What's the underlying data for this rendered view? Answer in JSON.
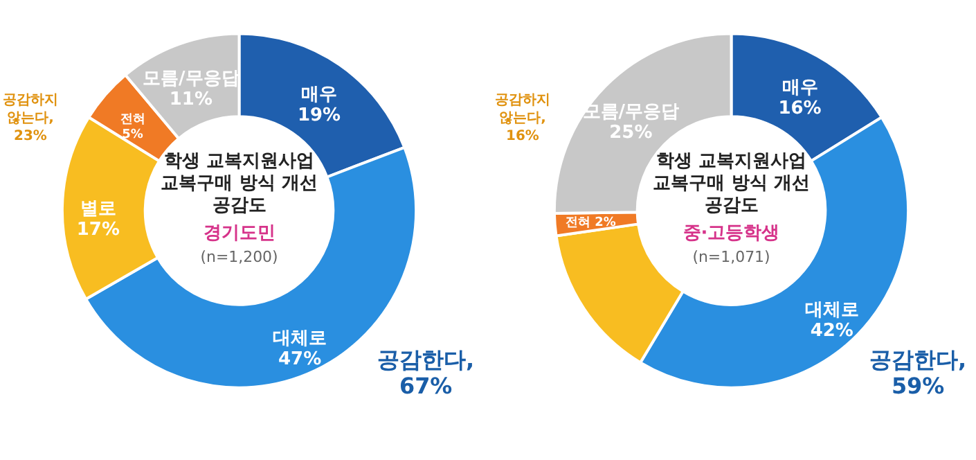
{
  "chart_data": [
    {
      "type": "donut",
      "title": "학생 교복지원사업\n교복구매 방식 개선\n공감도",
      "subtitle": "경기도민",
      "categories": [
        "매우",
        "대체로",
        "별로",
        "전혀",
        "모름/무응답"
      ],
      "values": [
        19,
        47,
        17,
        5,
        11
      ],
      "value_labels": [
        "19%",
        "47%",
        "17%",
        "5%",
        "11%"
      ],
      "colors": [
        "#1f5fae",
        "#2a8fe0",
        "#f8bd21",
        "#f07a25",
        "#c8c8c8"
      ],
      "annotations": [
        "(n=1,200)",
        "공감한다,\n67%",
        "공감하지\n않는다,\n23%"
      ]
    },
    {
      "type": "donut",
      "title": "학생 교복지원사업\n교복구매 방식 개선\n공감도",
      "subtitle": "중·고등학생",
      "categories": [
        "매우",
        "대체로",
        null,
        "전혀",
        "모름/무응답"
      ],
      "values": [
        16,
        42,
        14,
        2,
        25
      ],
      "value_labels": [
        "16%",
        "42%",
        null,
        "2%",
        "25%"
      ],
      "colors": [
        "#1f5fae",
        "#2a8fe0",
        "#f8bd21",
        "#f07a25",
        "#c8c8c8"
      ],
      "annotations": [
        "(n=1,071)",
        "공감한다,\n59%",
        "공감하지\n않는다,\n16%"
      ]
    }
  ]
}
